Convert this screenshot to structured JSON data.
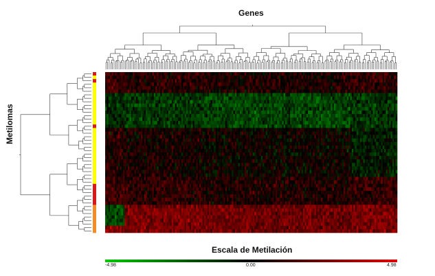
{
  "chart_data": {
    "type": "heatmap",
    "title": "Genes",
    "xlabel": "Genes",
    "ylabel": "Metilomas",
    "colorbar": {
      "title": "Escala de Metilación",
      "min": -4.98,
      "mid": 0.0,
      "max": 4.98,
      "tick_labels": [
        "-4.98",
        "0.00",
        "4.98"
      ],
      "colors": {
        "low": "#00c800",
        "mid": "#000000",
        "high": "#e00000"
      }
    },
    "n_rows": 46,
    "n_cols": 180,
    "row_group_sequence": [
      "red",
      "yellow",
      "red",
      "yellow",
      "yellow",
      "yellow",
      "yellow",
      "yellow",
      "yellow",
      "yellow",
      "yellow",
      "yellow",
      "yellow",
      "yellow",
      "yellow",
      "red",
      "yellow",
      "yellow",
      "yellow",
      "yellow",
      "yellow",
      "yellow",
      "yellow",
      "yellow",
      "yellow",
      "yellow",
      "yellow",
      "yellow",
      "yellow",
      "yellow",
      "yellow",
      "yellow",
      "red",
      "red",
      "red",
      "red",
      "red",
      "red",
      "orange",
      "orange",
      "orange",
      "orange",
      "orange",
      "orange",
      "orange",
      "orange"
    ],
    "group_colors": {
      "red": "#d7191c",
      "yellow": "#ffff00",
      "orange": "#f28c28"
    },
    "pattern_summary": [
      {
        "rows": "1-6",
        "trend": "mixed red/black with green patches"
      },
      {
        "rows": "7-16",
        "trend": "predominantly green (hypomethylated)"
      },
      {
        "rows": "17-30",
        "trend": "dark with scattered red, some green on right"
      },
      {
        "rows": "31-38",
        "trend": "mixed, red bands increasing"
      },
      {
        "rows": "39-46",
        "trend": "strongly red (hypermethylated), green block at far left"
      }
    ]
  },
  "labels": {
    "genes_title": "Genes",
    "rows_title": "Metilomas",
    "scale_title": "Escala de Metilación",
    "tick_min": "-4.98",
    "tick_mid": "0.00",
    "tick_max": "4.98"
  }
}
